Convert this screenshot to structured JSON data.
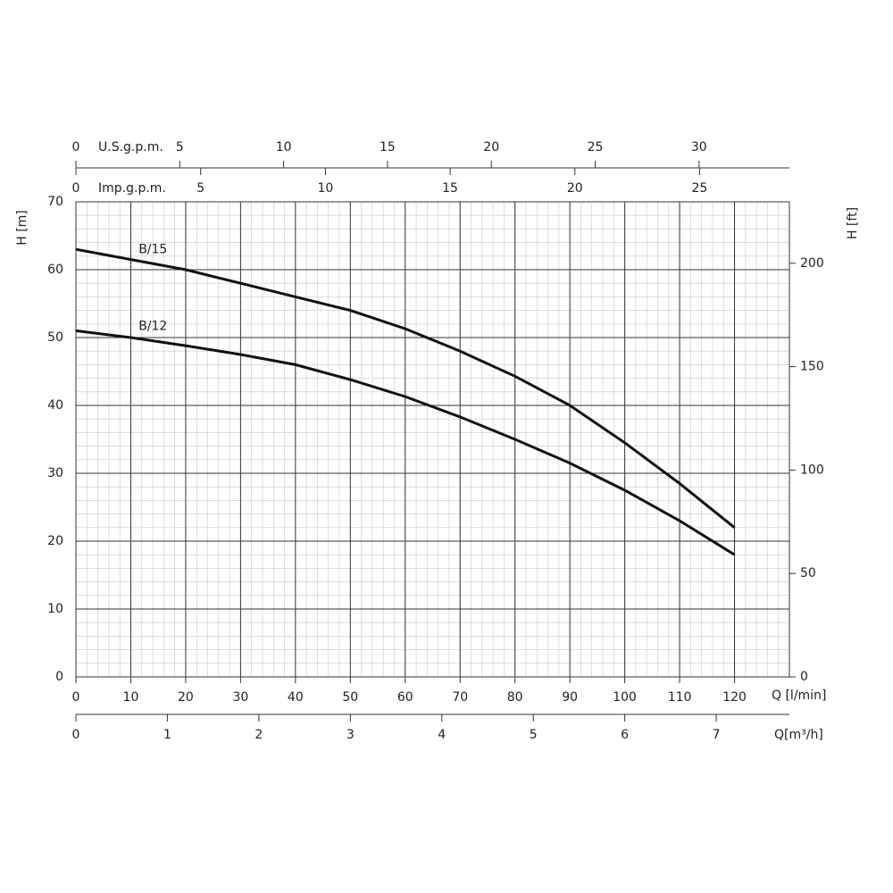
{
  "chart_data": {
    "type": "line",
    "x": [
      0,
      10,
      20,
      30,
      40,
      50,
      60,
      70,
      80,
      90,
      100,
      110,
      120
    ],
    "series": [
      {
        "name": "B/15",
        "color": "#111111",
        "values": [
          63,
          61.5,
          60,
          58,
          56,
          54,
          51.3,
          48,
          44.3,
          40,
          34.5,
          28.5,
          22
        ]
      },
      {
        "name": "B/12",
        "color": "#111111",
        "values": [
          51,
          50,
          48.8,
          47.5,
          46,
          43.8,
          41.3,
          38.3,
          35,
          31.5,
          27.5,
          23,
          18
        ]
      }
    ],
    "xlabel": "Q [l/min]",
    "xlim": [
      0,
      130
    ],
    "xticks": [
      0,
      10,
      20,
      30,
      40,
      50,
      60,
      70,
      80,
      90,
      100,
      110,
      120
    ],
    "ylabel": "H [m]",
    "ylim": [
      0,
      70
    ],
    "yticks": [
      0,
      10,
      20,
      30,
      40,
      50,
      60,
      70
    ],
    "y2label": "H [ft]",
    "y2lim": [
      0,
      229.7
    ],
    "y2ticks": [
      0,
      50,
      100,
      150,
      200
    ],
    "grid": true,
    "minor_grid": true,
    "extra_x_axes": [
      {
        "label": "U.S.g.p.m.",
        "lim": [
          0,
          34.35
        ],
        "ticks": [
          0,
          5,
          10,
          15,
          20,
          25,
          30
        ]
      },
      {
        "label": "Imp.g.p.m.",
        "lim": [
          0,
          28.6
        ],
        "ticks": [
          0,
          5,
          10,
          15,
          20,
          25
        ]
      },
      {
        "label": "Q[m³/h]",
        "lim": [
          0,
          7.8
        ],
        "ticks": [
          0,
          1,
          2,
          3,
          4,
          5,
          6,
          7
        ]
      }
    ]
  }
}
